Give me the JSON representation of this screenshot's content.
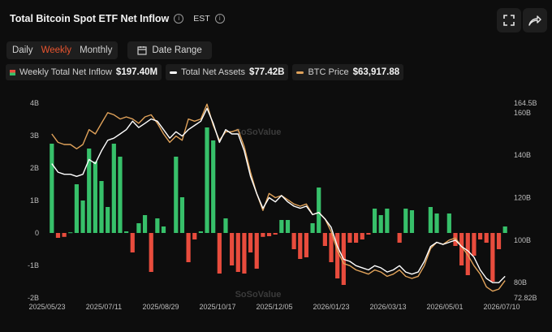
{
  "header": {
    "title": "Total Bitcoin Spot ETF Net Inflow",
    "timezone": "EST"
  },
  "controls": {
    "periods": [
      "Daily",
      "Weekly",
      "Monthly"
    ],
    "active_period": "Weekly",
    "date_range_label": "Date Range"
  },
  "legend": [
    {
      "label": "Weekly Total Net Inflow",
      "value": "$197.40M",
      "swatch": "bar"
    },
    {
      "label": "Total Net Assets",
      "value": "$77.42B",
      "swatch": "#ffffff"
    },
    {
      "label": "BTC Price",
      "value": "$63,917.88",
      "swatch": "#e0a25a"
    }
  ],
  "watermark": "SoSoValue",
  "colors": {
    "positive": "#37c06a",
    "negative": "#e84c3d",
    "net_assets": "#ffffff",
    "btc_price": "#e0a25a"
  },
  "chart_data": {
    "type": "bar",
    "title": "Total Bitcoin Spot ETF Net Inflow",
    "x_tick_labels": [
      "2025/05/23",
      "2025/07/11",
      "2025/08/29",
      "2025/10/17",
      "2025/12/05",
      "2026/01/23",
      "2026/03/13",
      "2026/05/01",
      "2026/07/10"
    ],
    "left_axis": {
      "ticks": [
        "4B",
        "3B",
        "2B",
        "1B",
        "0",
        "-1B",
        "-2B"
      ],
      "ylim": [
        -2,
        4
      ],
      "unit": "billion USD"
    },
    "right_axis": {
      "ticks": [
        "164.5B",
        "160B",
        "140B",
        "120B",
        "100B",
        "80B",
        "72.82B"
      ],
      "ylim": [
        72.82,
        164.5
      ],
      "unit": "billion USD"
    },
    "series": [
      {
        "name": "Weekly Total Net Inflow",
        "type": "bar",
        "axis": "left",
        "values": [
          2.75,
          -0.15,
          -0.12,
          0.02,
          1.5,
          1.0,
          2.6,
          2.2,
          1.6,
          0.8,
          2.75,
          2.35,
          0.05,
          -0.6,
          0.3,
          0.55,
          -1.2,
          0.45,
          0.2,
          0.0,
          2.35,
          1.1,
          -0.9,
          -0.2,
          0.05,
          3.25,
          2.85,
          -1.25,
          0.45,
          -1.0,
          -1.2,
          -1.25,
          -0.6,
          -1.1,
          -0.12,
          -0.1,
          -0.05,
          0.4,
          0.4,
          -0.5,
          -0.8,
          -0.75,
          0.3,
          1.4,
          -0.4,
          -0.9,
          -1.4,
          -1.6,
          -0.3,
          -0.3,
          -0.2,
          -0.05,
          0.75,
          0.55,
          0.75,
          0.0,
          -0.3,
          0.75,
          0.7,
          0.0,
          0.0,
          0.8,
          0.6,
          0.0,
          0.6,
          -0.4,
          -1.0,
          -1.3,
          -0.7,
          -0.2,
          -0.3,
          -1.5,
          -0.5,
          0.2
        ]
      },
      {
        "name": "Total Net Assets",
        "type": "line",
        "axis": "right",
        "values": [
          136,
          132,
          131,
          131,
          130,
          131,
          138,
          136,
          142,
          147,
          148,
          150,
          152,
          156,
          153,
          155,
          157,
          156,
          152,
          148,
          151,
          149,
          152,
          154,
          156,
          162,
          155,
          146,
          152,
          150,
          150,
          142,
          130,
          122,
          115,
          120,
          118,
          121,
          118,
          116,
          115,
          116,
          112,
          113,
          110,
          106,
          97,
          91,
          90,
          88,
          87,
          86,
          88,
          87,
          85,
          86,
          88,
          85,
          84,
          85,
          90,
          97,
          99,
          98,
          99,
          100,
          97,
          95,
          92,
          86,
          82,
          80,
          80,
          83
        ]
      },
      {
        "name": "BTC Price",
        "type": "line",
        "axis": "right",
        "values": [
          150,
          146,
          145,
          145,
          143,
          145,
          152,
          150,
          155,
          160,
          159,
          157,
          158,
          157,
          155,
          158,
          159,
          155,
          150,
          146,
          149,
          147,
          157,
          156,
          157,
          164,
          154,
          147,
          151,
          151,
          152,
          144,
          132,
          122,
          114,
          122,
          120,
          121,
          119,
          117,
          116,
          117,
          112,
          113,
          110,
          104,
          95,
          89,
          88,
          86,
          85,
          84,
          86,
          85,
          83,
          84,
          86,
          83,
          82,
          83,
          88,
          96,
          99,
          98,
          100,
          101,
          97,
          93,
          88,
          84,
          78,
          76,
          77,
          81
        ]
      }
    ],
    "grid": false,
    "legend_position": "top-left"
  }
}
